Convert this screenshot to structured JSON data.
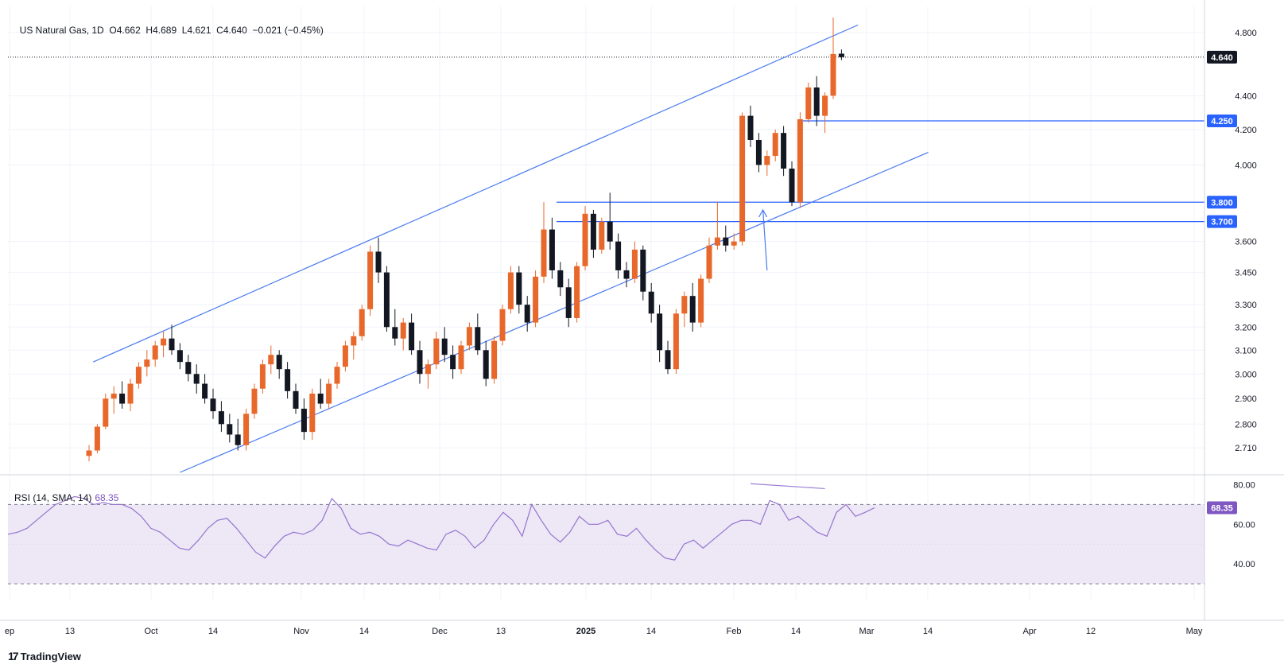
{
  "header": {
    "symbol": "US Natural Gas, 1D",
    "ohlc": "O4.662  H4.689  L4.621  C4.640  −0.021 (−0.45%)"
  },
  "rsi": {
    "label": "RSI (14, SMA, 14)",
    "value": "68.35",
    "badge": "68.35"
  },
  "branding": {
    "logo": "TradingView",
    "mark": "17"
  },
  "colors": {
    "up": "#e8672a",
    "down": "#131722",
    "line": "#2962ff",
    "rsi": "#9575cd",
    "rsi_band": "#ede7f6"
  },
  "chart_data": {
    "type": "candlestick",
    "title": "US Natural Gas, 1D",
    "y_ticks": [
      "4.800",
      "4.400",
      "4.200",
      "4.000",
      "3.600",
      "3.450",
      "3.300",
      "3.200",
      "3.100",
      "3.000",
      "2.900",
      "2.800",
      "2.710"
    ],
    "x_ticks": [
      "ep",
      "13",
      "Oct",
      "14",
      "Nov",
      "14",
      "Dec",
      "13",
      "2025",
      "14",
      "Feb",
      "14",
      "Mar",
      "14",
      "Apr",
      "12",
      "May"
    ],
    "price_labels": [
      "4.640",
      "4.250",
      "3.800",
      "3.700"
    ],
    "horizontal_levels": [
      4.25,
      3.8,
      3.7
    ],
    "last_close": 4.64,
    "ohlc_last": {
      "open": 4.662,
      "high": 4.689,
      "low": 4.621,
      "close": 4.64
    },
    "candles": [
      [
        2.68,
        2.72,
        2.66,
        2.7
      ],
      [
        2.7,
        2.8,
        2.69,
        2.79
      ],
      [
        2.79,
        2.92,
        2.78,
        2.9
      ],
      [
        2.9,
        2.95,
        2.84,
        2.92
      ],
      [
        2.92,
        2.97,
        2.86,
        2.88
      ],
      [
        2.88,
        2.98,
        2.85,
        2.96
      ],
      [
        2.96,
        3.05,
        2.94,
        3.03
      ],
      [
        3.03,
        3.1,
        2.99,
        3.06
      ],
      [
        3.06,
        3.14,
        3.03,
        3.12
      ],
      [
        3.12,
        3.18,
        3.07,
        3.15
      ],
      [
        3.15,
        3.21,
        3.08,
        3.1
      ],
      [
        3.1,
        3.13,
        3.02,
        3.05
      ],
      [
        3.05,
        3.08,
        2.97,
        3.0
      ],
      [
        3.0,
        3.04,
        2.92,
        2.96
      ],
      [
        2.96,
        3.0,
        2.88,
        2.9
      ],
      [
        2.9,
        2.94,
        2.82,
        2.85
      ],
      [
        2.85,
        2.89,
        2.77,
        2.8
      ],
      [
        2.8,
        2.84,
        2.73,
        2.76
      ],
      [
        2.76,
        2.82,
        2.7,
        2.72
      ],
      [
        2.72,
        2.86,
        2.7,
        2.84
      ],
      [
        2.84,
        2.96,
        2.82,
        2.94
      ],
      [
        2.94,
        3.06,
        2.92,
        3.04
      ],
      [
        3.04,
        3.12,
        3.0,
        3.08
      ],
      [
        3.08,
        3.1,
        2.98,
        3.02
      ],
      [
        3.02,
        3.05,
        2.9,
        2.93
      ],
      [
        2.93,
        2.96,
        2.84,
        2.86
      ],
      [
        2.86,
        2.9,
        2.74,
        2.77
      ],
      [
        2.77,
        2.94,
        2.74,
        2.92
      ],
      [
        2.92,
        2.98,
        2.86,
        2.88
      ],
      [
        2.88,
        2.98,
        2.86,
        2.96
      ],
      [
        2.96,
        3.05,
        2.94,
        3.03
      ],
      [
        3.03,
        3.14,
        3.01,
        3.12
      ],
      [
        3.12,
        3.18,
        3.06,
        3.16
      ],
      [
        3.16,
        3.3,
        3.14,
        3.28
      ],
      [
        3.28,
        3.58,
        3.25,
        3.55
      ],
      [
        3.55,
        3.62,
        3.4,
        3.45
      ],
      [
        3.45,
        3.48,
        3.18,
        3.2
      ],
      [
        3.2,
        3.28,
        3.12,
        3.15
      ],
      [
        3.15,
        3.24,
        3.1,
        3.22
      ],
      [
        3.22,
        3.26,
        3.08,
        3.1
      ],
      [
        3.1,
        3.14,
        2.96,
        3.0
      ],
      [
        3.0,
        3.06,
        2.94,
        3.04
      ],
      [
        3.04,
        3.18,
        3.02,
        3.15
      ],
      [
        3.15,
        3.2,
        3.05,
        3.08
      ],
      [
        3.08,
        3.12,
        2.98,
        3.02
      ],
      [
        3.02,
        3.14,
        3.0,
        3.12
      ],
      [
        3.12,
        3.22,
        3.1,
        3.2
      ],
      [
        3.2,
        3.26,
        3.08,
        3.1
      ],
      [
        3.1,
        3.14,
        2.95,
        2.98
      ],
      [
        2.98,
        3.16,
        2.96,
        3.14
      ],
      [
        3.14,
        3.3,
        3.12,
        3.28
      ],
      [
        3.28,
        3.48,
        3.26,
        3.45
      ],
      [
        3.45,
        3.48,
        3.26,
        3.3
      ],
      [
        3.3,
        3.34,
        3.18,
        3.22
      ],
      [
        3.22,
        3.46,
        3.2,
        3.43
      ],
      [
        3.43,
        3.8,
        3.4,
        3.66
      ],
      [
        3.66,
        3.72,
        3.42,
        3.46
      ],
      [
        3.46,
        3.5,
        3.34,
        3.38
      ],
      [
        3.38,
        3.42,
        3.2,
        3.24
      ],
      [
        3.24,
        3.5,
        3.22,
        3.48
      ],
      [
        3.48,
        3.78,
        3.46,
        3.74
      ],
      [
        3.74,
        3.76,
        3.52,
        3.56
      ],
      [
        3.56,
        3.72,
        3.54,
        3.7
      ],
      [
        3.7,
        3.85,
        3.56,
        3.6
      ],
      [
        3.6,
        3.64,
        3.42,
        3.46
      ],
      [
        3.46,
        3.5,
        3.38,
        3.42
      ],
      [
        3.42,
        3.6,
        3.4,
        3.56
      ],
      [
        3.56,
        3.58,
        3.32,
        3.36
      ],
      [
        3.36,
        3.4,
        3.22,
        3.26
      ],
      [
        3.26,
        3.3,
        3.05,
        3.1
      ],
      [
        3.1,
        3.14,
        3.0,
        3.02
      ],
      [
        3.02,
        3.28,
        3.0,
        3.26
      ],
      [
        3.26,
        3.36,
        3.2,
        3.34
      ],
      [
        3.34,
        3.4,
        3.18,
        3.22
      ],
      [
        3.22,
        3.44,
        3.2,
        3.42
      ],
      [
        3.42,
        3.62,
        3.4,
        3.58
      ],
      [
        3.58,
        3.8,
        3.56,
        3.62
      ],
      [
        3.62,
        3.68,
        3.55,
        3.58
      ],
      [
        3.58,
        3.64,
        3.56,
        3.6
      ],
      [
        3.6,
        4.3,
        3.58,
        4.28
      ],
      [
        4.28,
        4.34,
        4.1,
        4.14
      ],
      [
        4.14,
        4.18,
        3.96,
        4.0
      ],
      [
        4.0,
        4.08,
        3.94,
        4.05
      ],
      [
        4.05,
        4.2,
        4.02,
        4.18
      ],
      [
        4.18,
        4.22,
        3.94,
        3.98
      ],
      [
        3.98,
        4.02,
        3.78,
        3.8
      ],
      [
        3.8,
        4.3,
        3.77,
        4.26
      ],
      [
        4.26,
        4.48,
        4.24,
        4.45
      ],
      [
        4.45,
        4.52,
        4.22,
        4.28
      ],
      [
        4.28,
        4.42,
        4.18,
        4.4
      ],
      [
        4.4,
        4.9,
        4.38,
        4.66
      ],
      [
        4.662,
        4.689,
        4.621,
        4.64
      ]
    ],
    "rsi_levels": [
      80,
      70,
      60,
      40,
      30
    ],
    "rsi_values": [
      55,
      56,
      58,
      62,
      66,
      70,
      72,
      74,
      73,
      70,
      71,
      70,
      70,
      68,
      64,
      58,
      56,
      52,
      48,
      47,
      52,
      58,
      62,
      63,
      58,
      52,
      46,
      43,
      49,
      54,
      56,
      55,
      57,
      62,
      73,
      68,
      58,
      55,
      56,
      54,
      50,
      49,
      52,
      50,
      48,
      47,
      55,
      57,
      54,
      48,
      52,
      60,
      66,
      62,
      54,
      70,
      62,
      55,
      51,
      56,
      64,
      60,
      60,
      62,
      55,
      54,
      58,
      52,
      47,
      43,
      42,
      50,
      52,
      48,
      52,
      56,
      60,
      62,
      62,
      60,
      72,
      70,
      62,
      64,
      60,
      56,
      54,
      66,
      70,
      64,
      66,
      68.35
    ],
    "trendlines": [
      {
        "name": "upper channel",
        "from": [
          0.5,
          3.05
        ],
        "to": [
          93,
          4.85
        ]
      },
      {
        "name": "lower channel",
        "from": [
          11,
          2.62
        ],
        "to": [
          101.5,
          4.07
        ]
      },
      {
        "name": "arrow",
        "from": [
          82,
          3.46
        ],
        "to": [
          81.5,
          3.76
        ]
      },
      {
        "name": "rsi divergence",
        "from": [
          80,
          80.5
        ],
        "to": [
          89,
          78.0
        ],
        "pane": "rsi"
      }
    ]
  }
}
